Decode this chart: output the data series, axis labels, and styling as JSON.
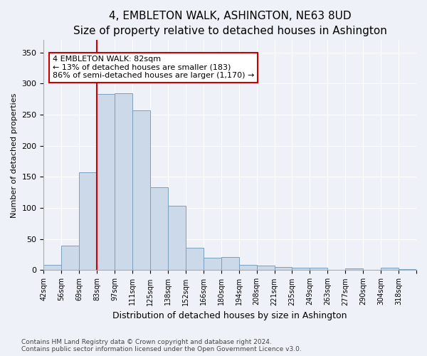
{
  "title": "4, EMBLETON WALK, ASHINGTON, NE63 8UD",
  "subtitle": "Size of property relative to detached houses in Ashington",
  "xlabel": "Distribution of detached houses by size in Ashington",
  "ylabel": "Number of detached properties",
  "bar_color": "#ccd9e8",
  "bar_edge_color": "#7aa0be",
  "background_color": "#eef2f8",
  "bins": [
    "42sqm",
    "56sqm",
    "69sqm",
    "83sqm",
    "97sqm",
    "111sqm",
    "125sqm",
    "138sqm",
    "152sqm",
    "166sqm",
    "180sqm",
    "194sqm",
    "208sqm",
    "221sqm",
    "235sqm",
    "249sqm",
    "263sqm",
    "277sqm",
    "290sqm",
    "304sqm",
    "318sqm"
  ],
  "values": [
    8,
    40,
    157,
    283,
    284,
    257,
    133,
    103,
    36,
    20,
    21,
    8,
    7,
    5,
    4,
    4,
    0,
    3,
    0,
    4,
    2
  ],
  "property_line_bin_index": 3,
  "annotation_text": "4 EMBLETON WALK: 82sqm\n← 13% of detached houses are smaller (183)\n86% of semi-detached houses are larger (1,170) →",
  "annotation_box_color": "#ffffff",
  "annotation_box_edge": "#cc0000",
  "vline_color": "#cc0000",
  "footer_line1": "Contains HM Land Registry data © Crown copyright and database right 2024.",
  "footer_line2": "Contains public sector information licensed under the Open Government Licence v3.0.",
  "ylim": [
    0,
    370
  ],
  "yticks": [
    0,
    50,
    100,
    150,
    200,
    250,
    300,
    350
  ],
  "grid_color": "#ffffff",
  "title_fontsize": 11,
  "subtitle_fontsize": 9
}
